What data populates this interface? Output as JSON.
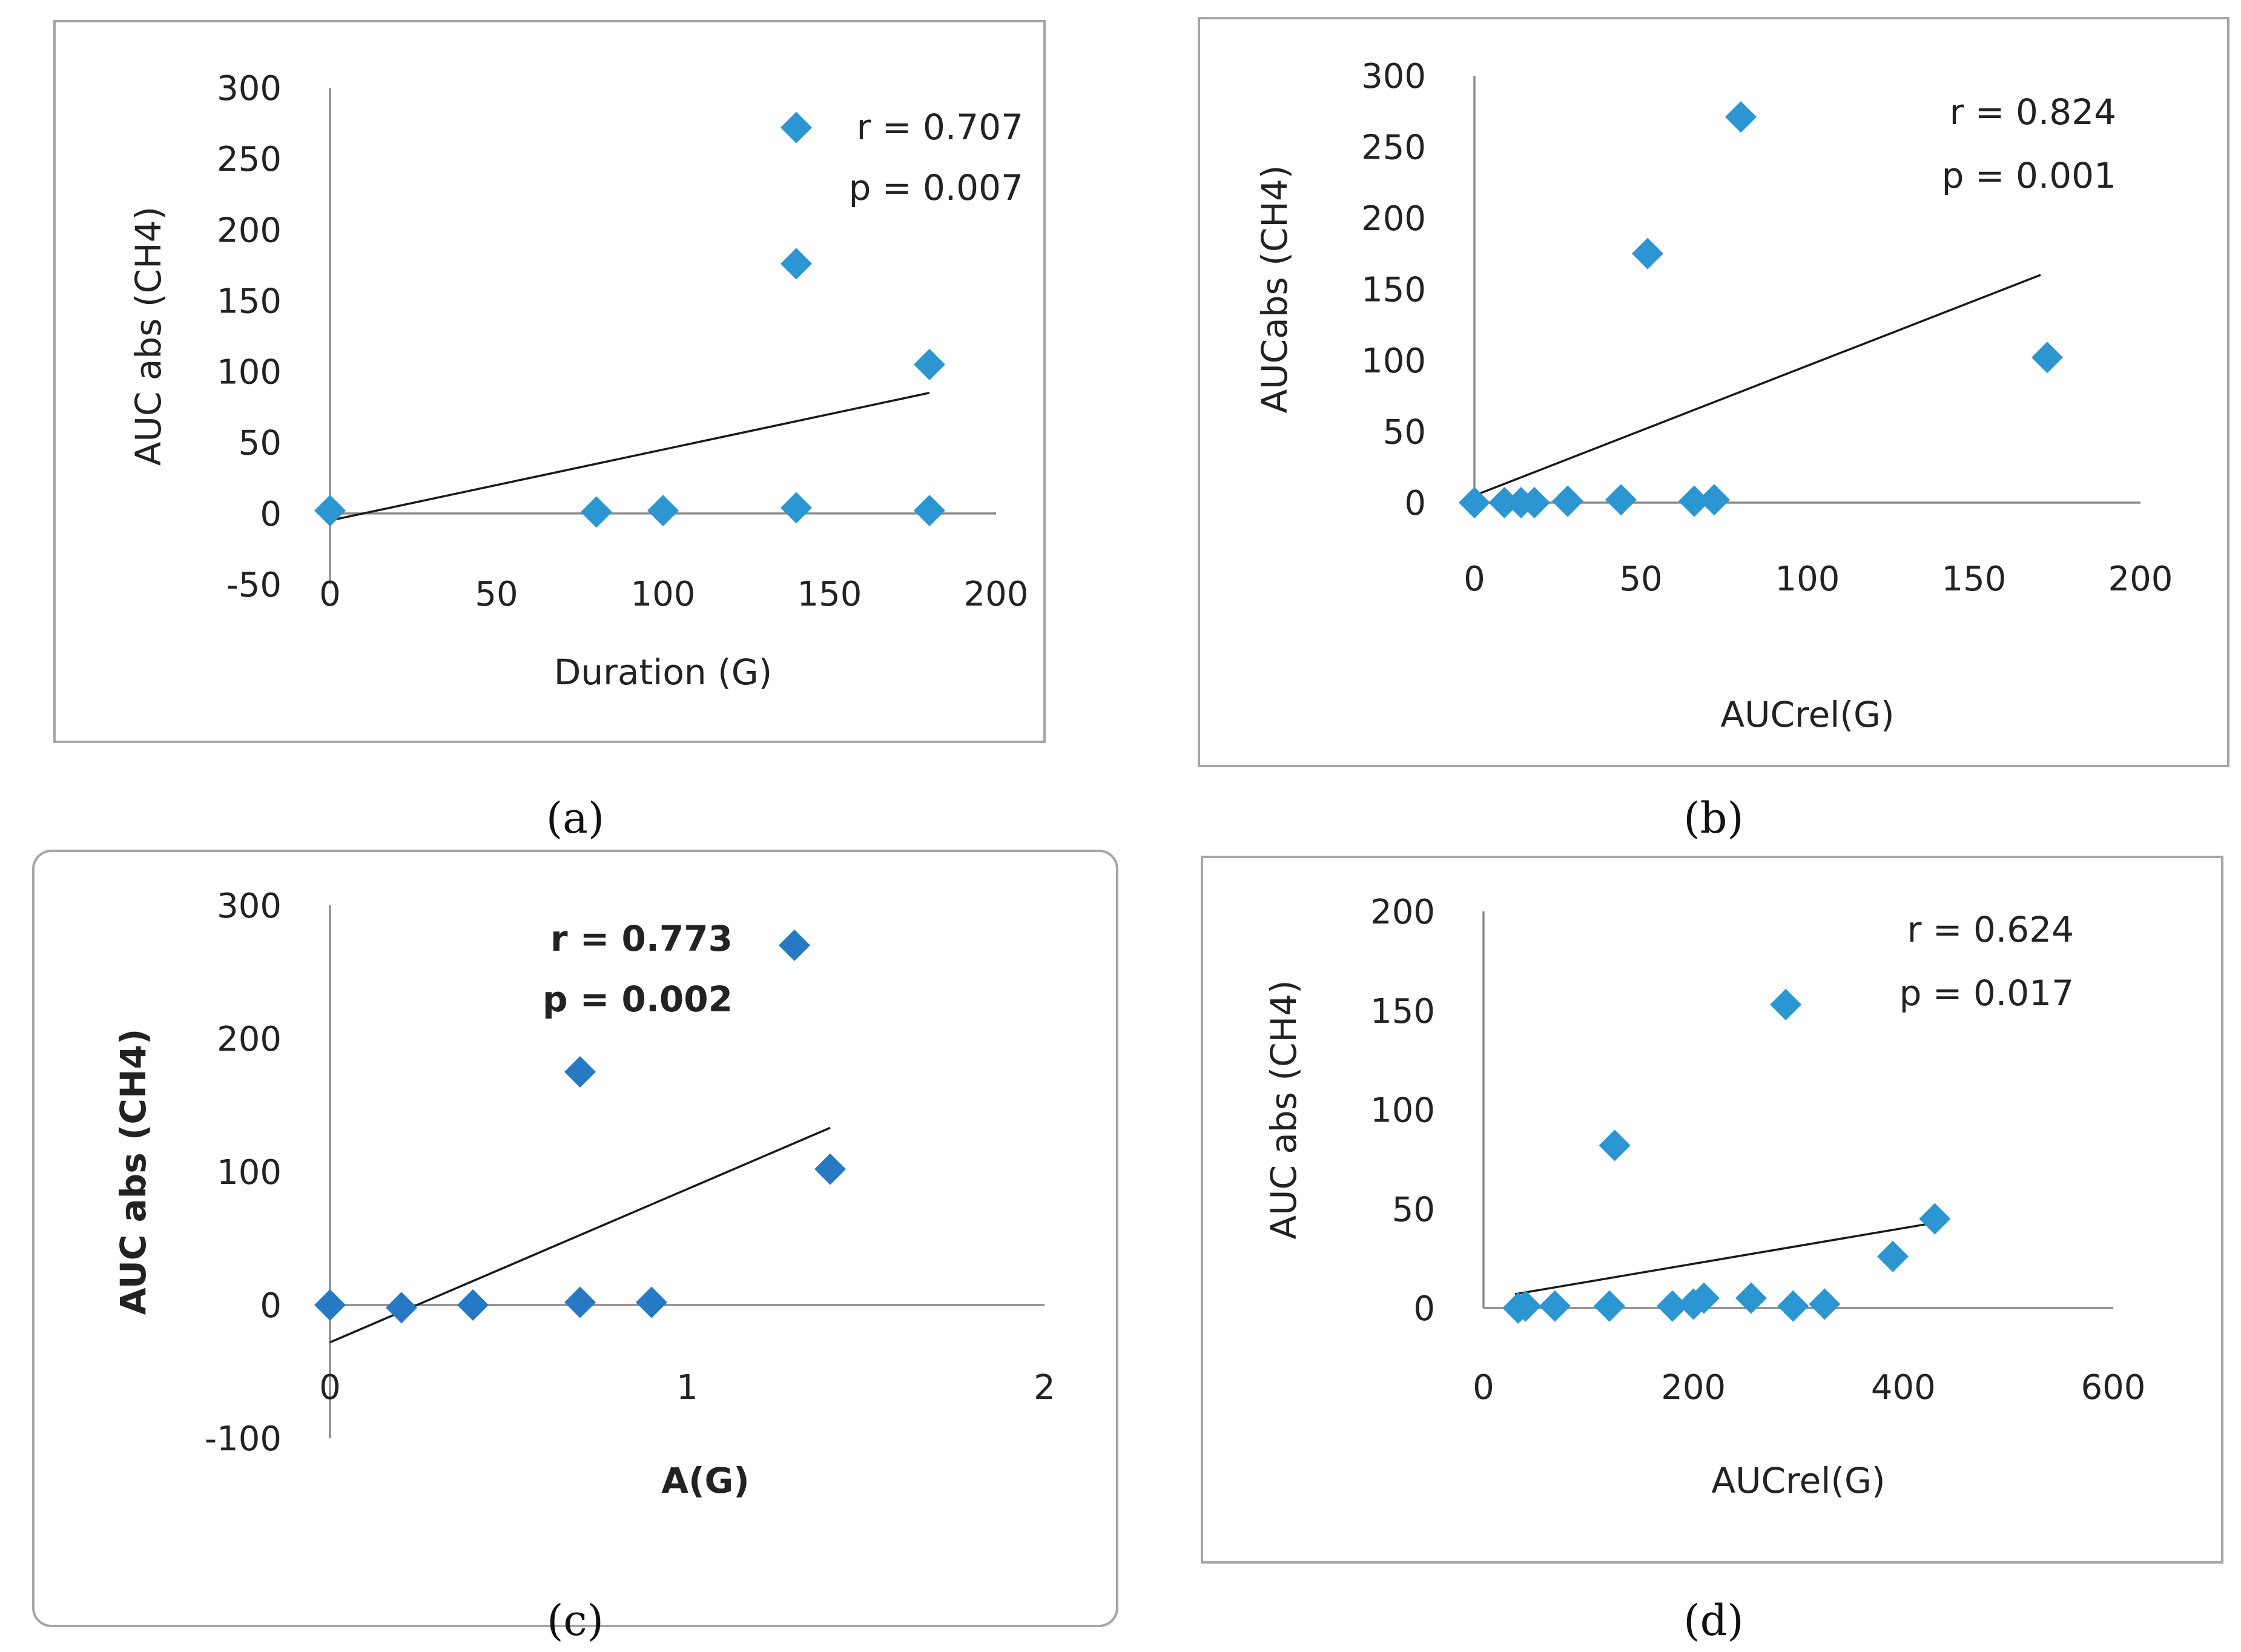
{
  "captions": [
    "(a)",
    "(b)",
    "(c)",
    "(d)"
  ],
  "chart_data": [
    {
      "type": "scatter",
      "title": "",
      "xlabel": "Duration (G)",
      "ylabel": "AUC abs (CH4)",
      "xlim": [
        0,
        200
      ],
      "ylim": [
        -50,
        300
      ],
      "xticks": [
        "0",
        "50",
        "100",
        "150",
        "200"
      ],
      "yticks": [
        "-50",
        "0",
        "50",
        "100",
        "150",
        "200",
        "250",
        "300"
      ],
      "x": [
        0,
        80,
        100,
        140,
        140,
        140,
        180,
        180
      ],
      "y": [
        2,
        1,
        2,
        272,
        176,
        4,
        105,
        2
      ],
      "trendline": {
        "x": [
          0,
          180
        ],
        "y": [
          -5,
          85
        ]
      },
      "annotations": [
        "r = 0.707",
        "p = 0.007"
      ],
      "marker_color": "#2b96d2",
      "annotation_bold": false
    },
    {
      "type": "scatter",
      "title": "",
      "xlabel": "AUCrel(G)",
      "ylabel": "AUCabs (CH4)",
      "xlim": [
        0,
        200
      ],
      "ylim": [
        0,
        300
      ],
      "xticks": [
        "0",
        "50",
        "100",
        "150",
        "200"
      ],
      "yticks": [
        "0",
        "50",
        "100",
        "150",
        "200",
        "250",
        "300"
      ],
      "x": [
        0,
        9,
        14,
        18,
        28,
        44,
        52,
        66,
        72,
        80,
        172
      ],
      "y": [
        0,
        0,
        0,
        0,
        1,
        2,
        175,
        1,
        2,
        271,
        102
      ],
      "trendline": {
        "x": [
          0,
          170
        ],
        "y": [
          5,
          160
        ]
      },
      "annotations": [
        "r = 0.824",
        "p = 0.001"
      ],
      "marker_color": "#2b96d2",
      "annotation_bold": false
    },
    {
      "type": "scatter",
      "title": "",
      "xlabel": "A(G)",
      "ylabel": "AUC abs (CH4)",
      "xlim": [
        0,
        2
      ],
      "ylim": [
        -100,
        300
      ],
      "xticks": [
        "0",
        "1",
        "2"
      ],
      "yticks": [
        "-100",
        "0",
        "100",
        "200",
        "300"
      ],
      "x": [
        0,
        0.2,
        0.4,
        0.7,
        0.7,
        0.9,
        1.3,
        1.4
      ],
      "y": [
        0,
        -2,
        0,
        175,
        2,
        2,
        270,
        102
      ],
      "trendline": {
        "x": [
          0,
          1.4
        ],
        "y": [
          -28,
          133
        ]
      },
      "annotations": [
        "r = 0.773",
        "p = 0.002"
      ],
      "marker_color": "#2679c2",
      "annotation_bold": true
    },
    {
      "type": "scatter",
      "title": "",
      "xlabel": "AUCrel(G)",
      "ylabel": "AUC abs (CH4)",
      "xlim": [
        0,
        600
      ],
      "ylim": [
        0,
        200
      ],
      "xticks": [
        "0",
        "200",
        "400",
        "600"
      ],
      "yticks": [
        "0",
        "50",
        "100",
        "150",
        "200"
      ],
      "x": [
        33,
        40,
        68,
        120,
        125,
        180,
        200,
        210,
        255,
        295,
        325,
        390,
        430,
        288
      ],
      "y": [
        0,
        1,
        1,
        1,
        82,
        1,
        2,
        5,
        5,
        1,
        2,
        26,
        45,
        153
      ],
      "trendline": {
        "x": [
          30,
          430
        ],
        "y": [
          7,
          43
        ]
      },
      "annotations": [
        "r = 0.624",
        "p = 0.017"
      ],
      "marker_color": "#2b96d2",
      "annotation_bold": false
    }
  ]
}
